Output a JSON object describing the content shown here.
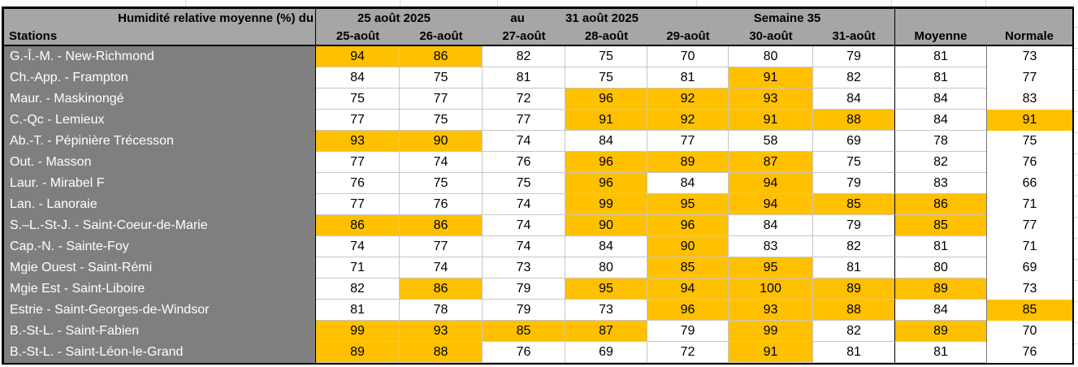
{
  "table": {
    "title_left": "Humidité relative moyenne (%) du",
    "title_date_start": "25 août 2025",
    "title_mid": "au",
    "title_date_end": "31 août 2025",
    "title_week": "Semaine 35",
    "stations_header": "Stations",
    "day_headers": [
      "25-août",
      "26-août",
      "27-août",
      "28-août",
      "29-août",
      "30-août",
      "31-août"
    ],
    "moyenne_header": "Moyenne",
    "normale_header": "Normale",
    "rows": [
      {
        "station": "G.-Î.-M. - New-Richmond",
        "values": [
          94,
          86,
          82,
          75,
          70,
          80,
          79
        ],
        "value_hl": [
          1,
          1,
          0,
          0,
          0,
          0,
          0
        ],
        "moyenne": 81,
        "moyenne_hl": 0,
        "normale": 73,
        "normale_hl": 0
      },
      {
        "station": "Ch.-App. - Frampton",
        "values": [
          84,
          75,
          81,
          75,
          81,
          91,
          82
        ],
        "value_hl": [
          0,
          0,
          0,
          0,
          0,
          1,
          0
        ],
        "moyenne": 81,
        "moyenne_hl": 0,
        "normale": 77,
        "normale_hl": 0
      },
      {
        "station": "Maur. - Maskinongé",
        "values": [
          75,
          77,
          72,
          96,
          92,
          93,
          84
        ],
        "value_hl": [
          0,
          0,
          0,
          1,
          1,
          1,
          0
        ],
        "moyenne": 84,
        "moyenne_hl": 0,
        "normale": 83,
        "normale_hl": 0
      },
      {
        "station": "C.-Qc - Lemieux",
        "values": [
          77,
          75,
          77,
          91,
          92,
          91,
          88
        ],
        "value_hl": [
          0,
          0,
          0,
          1,
          1,
          1,
          1
        ],
        "moyenne": 84,
        "moyenne_hl": 0,
        "normale": 91,
        "normale_hl": 1
      },
      {
        "station": "Ab.-T. - Pépinière Trécesson",
        "values": [
          93,
          90,
          74,
          84,
          77,
          58,
          69
        ],
        "value_hl": [
          1,
          1,
          0,
          0,
          0,
          0,
          0
        ],
        "moyenne": 78,
        "moyenne_hl": 0,
        "normale": 75,
        "normale_hl": 0
      },
      {
        "station": "Out. - Masson",
        "values": [
          77,
          74,
          76,
          96,
          89,
          87,
          75
        ],
        "value_hl": [
          0,
          0,
          0,
          1,
          1,
          1,
          0
        ],
        "moyenne": 82,
        "moyenne_hl": 0,
        "normale": 76,
        "normale_hl": 0
      },
      {
        "station": "Laur. - Mirabel F",
        "values": [
          76,
          75,
          75,
          96,
          84,
          94,
          79
        ],
        "value_hl": [
          0,
          0,
          0,
          1,
          0,
          1,
          0
        ],
        "moyenne": 83,
        "moyenne_hl": 0,
        "normale": 66,
        "normale_hl": 0
      },
      {
        "station": "Lan. - Lanoraie",
        "values": [
          77,
          76,
          74,
          99,
          95,
          94,
          85
        ],
        "value_hl": [
          0,
          0,
          0,
          1,
          1,
          1,
          1
        ],
        "moyenne": 86,
        "moyenne_hl": 1,
        "normale": 71,
        "normale_hl": 0
      },
      {
        "station": "S.–L.-St-J. - Saint-Coeur-de-Marie",
        "values": [
          86,
          86,
          74,
          90,
          96,
          84,
          79
        ],
        "value_hl": [
          1,
          1,
          0,
          1,
          1,
          0,
          0
        ],
        "moyenne": 85,
        "moyenne_hl": 1,
        "normale": 77,
        "normale_hl": 0
      },
      {
        "station": "Cap.-N. - Sainte-Foy",
        "values": [
          74,
          77,
          74,
          84,
          90,
          83,
          82
        ],
        "value_hl": [
          0,
          0,
          0,
          0,
          1,
          0,
          0
        ],
        "moyenne": 81,
        "moyenne_hl": 0,
        "normale": 71,
        "normale_hl": 0
      },
      {
        "station": "Mgie Ouest - Saint-Rémi",
        "values": [
          71,
          74,
          73,
          80,
          85,
          95,
          81
        ],
        "value_hl": [
          0,
          0,
          0,
          0,
          1,
          1,
          0
        ],
        "moyenne": 80,
        "moyenne_hl": 0,
        "normale": 69,
        "normale_hl": 0
      },
      {
        "station": "Mgie Est - Saint-Liboire",
        "values": [
          82,
          86,
          79,
          95,
          94,
          100,
          89
        ],
        "value_hl": [
          0,
          1,
          0,
          1,
          1,
          1,
          1
        ],
        "moyenne": 89,
        "moyenne_hl": 1,
        "normale": 73,
        "normale_hl": 0
      },
      {
        "station": "Estrie - Saint-Georges-de-Windsor",
        "values": [
          81,
          78,
          79,
          73,
          96,
          93,
          88
        ],
        "value_hl": [
          0,
          0,
          0,
          0,
          1,
          1,
          1
        ],
        "moyenne": 84,
        "moyenne_hl": 0,
        "normale": 85,
        "normale_hl": 1
      },
      {
        "station": "B.-St-L. - Saint-Fabien",
        "values": [
          99,
          93,
          85,
          87,
          79,
          99,
          82
        ],
        "value_hl": [
          1,
          1,
          1,
          1,
          0,
          1,
          0
        ],
        "moyenne": 89,
        "moyenne_hl": 1,
        "normale": 70,
        "normale_hl": 0
      },
      {
        "station": "B.-St-L. - Saint-Léon-le-Grand",
        "values": [
          89,
          88,
          76,
          69,
          72,
          91,
          81
        ],
        "value_hl": [
          1,
          1,
          0,
          0,
          0,
          1,
          0
        ],
        "moyenne": 81,
        "moyenne_hl": 0,
        "normale": 76,
        "normale_hl": 0
      }
    ]
  },
  "colors": {
    "highlight": "#FFC000",
    "header_bg": "#A6A6A6",
    "station_bg": "#7F7F7F",
    "normale_bg": "#A6A6A6",
    "grid_line": "#C6C6C6"
  }
}
